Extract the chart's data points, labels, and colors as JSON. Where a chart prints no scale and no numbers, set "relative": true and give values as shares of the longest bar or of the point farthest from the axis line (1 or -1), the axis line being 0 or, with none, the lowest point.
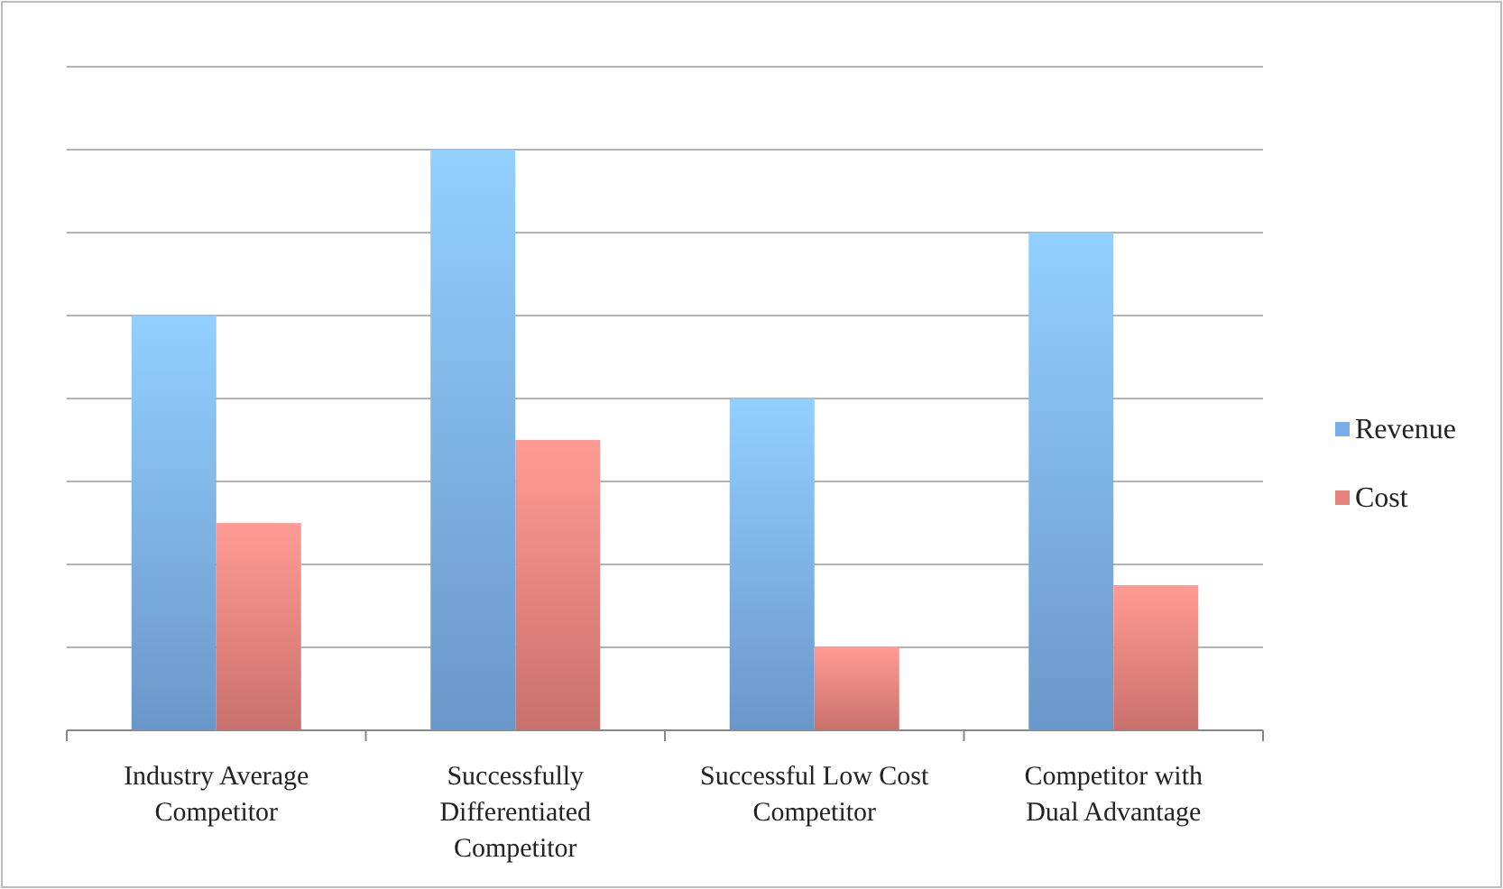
{
  "chart_data": {
    "type": "bar",
    "relative": true,
    "categories": [
      "Industry Average Competitor",
      "Successfully Differentiated Competitor",
      "Successful Low Cost Competitor",
      "Competitor with Dual Advantage"
    ],
    "series": [
      {
        "name": "Revenue",
        "color": "#7aaee8",
        "values": [
          0.714,
          1,
          0.571,
          0.857
        ]
      },
      {
        "name": "Cost",
        "color": "#e8827c",
        "values": [
          0.357,
          0.5,
          0.143,
          0.25
        ]
      }
    ],
    "grid": "y",
    "legend": "right"
  }
}
